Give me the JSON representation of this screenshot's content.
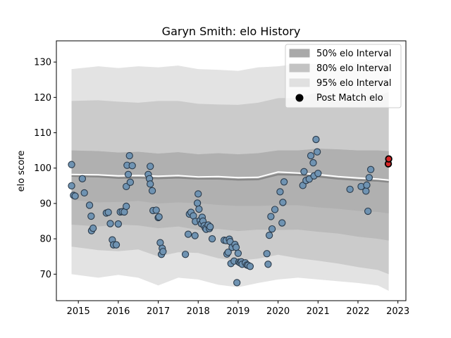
{
  "chart_data": {
    "type": "scatter",
    "title": "Garyn Smith: elo History",
    "xlabel": "",
    "ylabel": "elo score",
    "xlim": [
      2014.45,
      2023.2
    ],
    "ylim": [
      62.5,
      136
    ],
    "xticks": [
      "2015",
      "2016",
      "2017",
      "2018",
      "2019",
      "2020",
      "2021",
      "2022",
      "2023"
    ],
    "xtick_values": [
      2015,
      2016,
      2017,
      2018,
      2019,
      2020,
      2021,
      2022,
      2023
    ],
    "yticks": [
      "70",
      "80",
      "90",
      "100",
      "110",
      "120",
      "130"
    ],
    "ytick_values": [
      70,
      80,
      90,
      100,
      110,
      120,
      130
    ],
    "grid": false,
    "legend_position": "top-right",
    "legend": [
      {
        "label": "50% elo Interval",
        "kind": "band",
        "color": "#a9a9a9"
      },
      {
        "label": "80% elo Interval",
        "kind": "band",
        "color": "#c3c3c3"
      },
      {
        "label": "95% elo Interval",
        "kind": "band",
        "color": "#e0e0e0"
      },
      {
        "label": "Post Match elo",
        "kind": "marker",
        "color": "#000000"
      }
    ],
    "colors": {
      "point_fill": "#6f93b2",
      "point_edge": "#2a3a4a",
      "latest_fill": "#d62728",
      "latest_edge": "#000000",
      "mean_line": "#ffffff",
      "center_line": "#888888"
    },
    "bands": {
      "x": [
        2014.83,
        2015.5,
        2016.0,
        2016.5,
        2017.0,
        2017.5,
        2018.0,
        2018.5,
        2019.0,
        2019.5,
        2020.0,
        2020.5,
        2021.0,
        2021.5,
        2022.0,
        2022.5,
        2022.77
      ],
      "center": [
        97.8,
        97.6,
        97.2,
        97.3,
        97.1,
        97.3,
        97.0,
        97.0,
        96.7,
        96.8,
        98.2,
        98.1,
        97.6,
        97.0,
        96.6,
        96.4,
        96.1
      ],
      "mean": [
        98.2,
        98.1,
        97.8,
        97.9,
        97.7,
        97.9,
        97.5,
        97.6,
        97.3,
        97.4,
        98.9,
        98.6,
        98.2,
        97.6,
        97.2,
        96.9,
        96.6
      ],
      "p50": {
        "lower": [
          91.0,
          90.3,
          90.4,
          90.7,
          90.0,
          90.3,
          90.1,
          89.6,
          89.3,
          89.3,
          89.5,
          89.5,
          88.9,
          88.5,
          87.9,
          87.6,
          87.2
        ],
        "upper": [
          105.0,
          104.8,
          104.4,
          104.6,
          104.1,
          104.5,
          103.9,
          104.2,
          103.9,
          104.2,
          105.0,
          105.0,
          105.5,
          105.3,
          105.0,
          105.0,
          104.8
        ]
      },
      "p80": {
        "lower": [
          84.0,
          83.5,
          84.0,
          83.8,
          83.0,
          83.5,
          82.5,
          82.8,
          82.2,
          82.6,
          82.5,
          82.6,
          82.0,
          81.5,
          80.6,
          80.0,
          79.5
        ]
      }
    },
    "bands_outer": {
      "p80_upper": [
        119.0,
        119.2,
        118.8,
        118.5,
        119.0,
        119.0,
        118.2,
        118.0,
        117.9,
        118.5,
        119.8,
        119.9,
        121.5,
        119.0,
        120.0,
        120.5,
        121.5
      ],
      "p80_lower": [
        77.8,
        76.8,
        76.5,
        77.0,
        75.0,
        76.2,
        76.0,
        74.5,
        73.8,
        74.4,
        75.5,
        74.5,
        73.8,
        73.0,
        72.0,
        71.2,
        70.0
      ],
      "p95_upper": [
        128.0,
        128.8,
        128.3,
        128.8,
        128.5,
        129.0,
        128.0,
        127.8,
        127.5,
        128.5,
        128.8,
        129.5,
        129.5,
        129.0,
        130.0,
        130.5,
        131.0
      ],
      "p95_lower": [
        70.0,
        69.0,
        69.8,
        69.0,
        66.8,
        69.0,
        68.5,
        67.0,
        66.3,
        67.5,
        68.5,
        69.0,
        68.5,
        68.0,
        67.5,
        66.8,
        65.3
      ]
    },
    "series": [
      {
        "name": "Post Match elo",
        "points": [
          [
            2014.83,
            101.0
          ],
          [
            2014.83,
            95.0
          ],
          [
            2014.88,
            92.3
          ],
          [
            2014.92,
            92.1
          ],
          [
            2015.1,
            97.0
          ],
          [
            2015.15,
            93.0
          ],
          [
            2015.28,
            89.5
          ],
          [
            2015.32,
            86.4
          ],
          [
            2015.33,
            82.3
          ],
          [
            2015.37,
            83.0
          ],
          [
            2015.7,
            87.3
          ],
          [
            2015.75,
            87.5
          ],
          [
            2015.8,
            84.3
          ],
          [
            2015.85,
            79.7
          ],
          [
            2015.88,
            78.3
          ],
          [
            2015.95,
            78.3
          ],
          [
            2016.0,
            84.2
          ],
          [
            2016.05,
            87.6
          ],
          [
            2016.1,
            87.7
          ],
          [
            2016.15,
            87.6
          ],
          [
            2016.2,
            89.2
          ],
          [
            2016.2,
            94.8
          ],
          [
            2016.22,
            100.8
          ],
          [
            2016.25,
            98.2
          ],
          [
            2016.28,
            103.5
          ],
          [
            2016.3,
            96.0
          ],
          [
            2016.35,
            100.7
          ],
          [
            2016.75,
            98.2
          ],
          [
            2016.78,
            97.0
          ],
          [
            2016.8,
            95.5
          ],
          [
            2016.8,
            100.5
          ],
          [
            2016.85,
            93.6
          ],
          [
            2016.87,
            88.0
          ],
          [
            2016.95,
            88.1
          ],
          [
            2017.0,
            86.0
          ],
          [
            2017.02,
            86.2
          ],
          [
            2017.05,
            78.9
          ],
          [
            2017.08,
            75.6
          ],
          [
            2017.1,
            77.3
          ],
          [
            2017.12,
            76.4
          ],
          [
            2017.68,
            75.6
          ],
          [
            2017.75,
            81.3
          ],
          [
            2017.78,
            87.0
          ],
          [
            2017.82,
            87.5
          ],
          [
            2017.88,
            86.5
          ],
          [
            2017.92,
            80.9
          ],
          [
            2017.93,
            84.9
          ],
          [
            2017.98,
            90.1
          ],
          [
            2018.0,
            92.7
          ],
          [
            2018.02,
            88.4
          ],
          [
            2018.05,
            85.2
          ],
          [
            2018.08,
            84.3
          ],
          [
            2018.1,
            86.1
          ],
          [
            2018.12,
            85.0
          ],
          [
            2018.15,
            83.7
          ],
          [
            2018.18,
            83.0
          ],
          [
            2018.2,
            82.7
          ],
          [
            2018.25,
            83.9
          ],
          [
            2018.28,
            82.9
          ],
          [
            2018.3,
            83.4
          ],
          [
            2018.35,
            80.0
          ],
          [
            2018.65,
            79.6
          ],
          [
            2018.7,
            79.5
          ],
          [
            2018.72,
            75.7
          ],
          [
            2018.75,
            76.2
          ],
          [
            2018.78,
            79.9
          ],
          [
            2018.8,
            79.2
          ],
          [
            2018.82,
            73.0
          ],
          [
            2018.85,
            77.6
          ],
          [
            2018.9,
            73.7
          ],
          [
            2018.92,
            78.4
          ],
          [
            2018.95,
            77.6
          ],
          [
            2018.97,
            67.6
          ],
          [
            2019.0,
            75.9
          ],
          [
            2019.02,
            73.4
          ],
          [
            2019.05,
            73.2
          ],
          [
            2019.08,
            73.5
          ],
          [
            2019.1,
            72.8
          ],
          [
            2019.18,
            73.2
          ],
          [
            2019.22,
            72.6
          ],
          [
            2019.25,
            72.5
          ],
          [
            2019.3,
            72.2
          ],
          [
            2019.72,
            75.8
          ],
          [
            2019.75,
            72.8
          ],
          [
            2019.78,
            81.0
          ],
          [
            2019.82,
            86.3
          ],
          [
            2019.85,
            82.8
          ],
          [
            2019.92,
            88.3
          ],
          [
            2020.05,
            93.3
          ],
          [
            2020.1,
            84.5
          ],
          [
            2020.12,
            90.3
          ],
          [
            2020.15,
            96.1
          ],
          [
            2020.62,
            95.1
          ],
          [
            2020.65,
            99.0
          ],
          [
            2020.7,
            96.5
          ],
          [
            2020.78,
            96.9
          ],
          [
            2020.82,
            103.5
          ],
          [
            2020.88,
            101.5
          ],
          [
            2020.9,
            97.8
          ],
          [
            2020.95,
            108.1
          ],
          [
            2020.98,
            104.6
          ],
          [
            2021.0,
            98.5
          ],
          [
            2021.8,
            94.0
          ],
          [
            2022.08,
            94.8
          ],
          [
            2022.2,
            93.5
          ],
          [
            2022.22,
            95.2
          ],
          [
            2022.25,
            87.8
          ],
          [
            2022.28,
            97.3
          ],
          [
            2022.32,
            99.6
          ]
        ]
      },
      {
        "name": "latest",
        "points": [
          [
            2022.76,
            101.2
          ],
          [
            2022.77,
            102.6
          ]
        ]
      }
    ]
  }
}
